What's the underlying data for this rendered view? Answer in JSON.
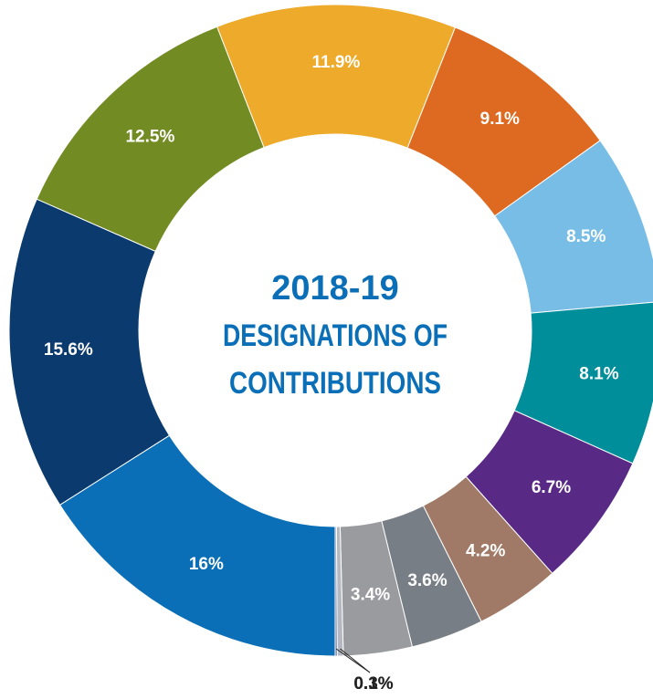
{
  "chart_data": {
    "type": "donut",
    "title": [
      "2018-19",
      "DESIGNATIONS OF",
      "CONTRIBUTIONS"
    ],
    "title_color": "#0a6fb7",
    "series": [
      {
        "values": [
          16,
          15.6,
          12.5,
          11.9,
          9.1,
          8.5,
          8.1,
          6.7,
          4.2,
          3.6,
          3.4,
          0.3,
          0.1
        ],
        "value_labels": [
          "16%",
          "15.6%",
          "12.5%",
          "11.9%",
          "9.1%",
          "8.5%",
          "8.1%",
          "6.7%",
          "4.2%",
          "3.6%",
          "3.4%",
          "0.3%",
          "0.1%"
        ],
        "colors": [
          "#0a6fb7",
          "#0b3b6e",
          "#728b22",
          "#eeaa2b",
          "#dd6a20",
          "#77bde6",
          "#008e9b",
          "#582a86",
          "#a07a66",
          "#787e86",
          "#9a9b9f",
          "#b5b8c0",
          "#5a6f9c"
        ]
      }
    ]
  }
}
